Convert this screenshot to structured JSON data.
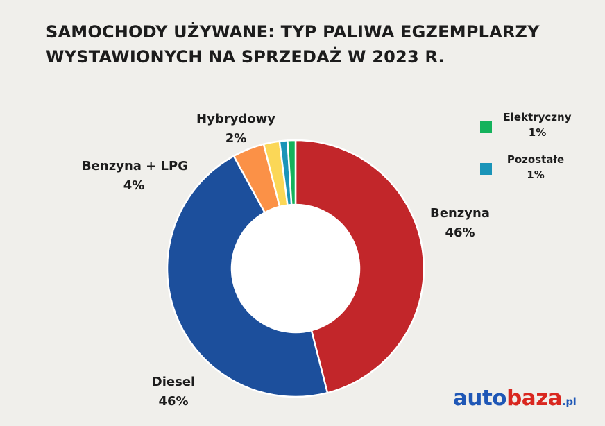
{
  "title": {
    "line1": "SAMOCHODY UŻYWANE: TYP PALIWA EGZEMPLARZY",
    "line2": "WYSTAWIONYCH NA SPRZEDAŻ W 2023 R."
  },
  "chart_data": {
    "type": "pie",
    "donut": true,
    "title": "SAMOCHODY UŻYWANE: TYP PALIWA EGZEMPLARZY WYSTAWIONYCH NA SPRZEDAŻ W 2023 R.",
    "categories": [
      "Benzyna",
      "Diesel",
      "Benzyna + LPG",
      "Hybrydowy",
      "Pozostałe",
      "Elektryczny"
    ],
    "values": [
      46,
      46,
      4,
      2,
      1,
      1
    ],
    "labels": [
      "46%",
      "46%",
      "4%",
      "2%",
      "1%",
      "1%"
    ],
    "colors": [
      "#c2262a",
      "#1c4f9c",
      "#fb9147",
      "#fbd757",
      "#1a94b8",
      "#14b25c"
    ],
    "legend_placement": "top-right"
  },
  "labels": {
    "benzyna": {
      "name": "Benzyna",
      "pct": "46%"
    },
    "diesel": {
      "name": "Diesel",
      "pct": "46%"
    },
    "lpg": {
      "name": "Benzyna + LPG",
      "pct": "4%"
    },
    "hybrydowy": {
      "name": "Hybrydowy",
      "pct": "2%"
    }
  },
  "legend": [
    {
      "name": "Elektryczny",
      "pct": "1%",
      "color": "#14b25c"
    },
    {
      "name": "Pozostałe",
      "pct": "1%",
      "color": "#1a94b8"
    }
  ],
  "logo": {
    "part1": "auto",
    "part2": "baza",
    "suffix": ".pl"
  }
}
